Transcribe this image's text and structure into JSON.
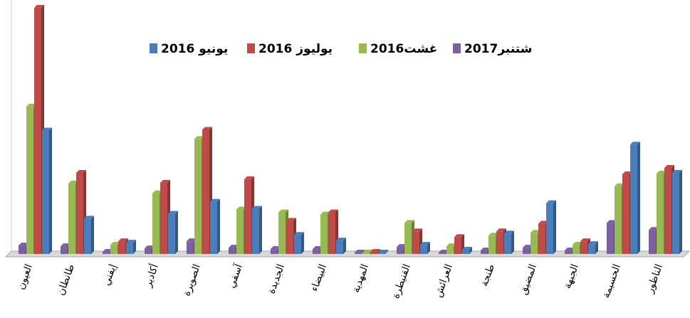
{
  "chart_data": {
    "type": "bar",
    "categories": [
      "العيون",
      "طانطان",
      "إيفني",
      "أكادير",
      "الصويرة",
      "آسفي",
      "الجديدة",
      "البيضاء",
      "المهدية",
      "القنيطرة",
      "العرائش",
      "طنجة",
      "المضيق",
      "الجبهة",
      "الحسيمة",
      "الناظور"
    ],
    "series": [
      {
        "name": "يونيو 2016",
        "color": "#4a7ebb",
        "values": [
          175,
          50,
          16,
          57,
          74,
          64,
          27,
          19,
          2,
          13,
          6,
          29,
          72,
          14,
          155,
          115
        ]
      },
      {
        "name": "يوليوز 2016",
        "color": "#be4b48",
        "values": [
          349,
          115,
          18,
          101,
          176,
          106,
          47,
          59,
          3,
          32,
          24,
          32,
          43,
          18,
          113,
          122
        ]
      },
      {
        "name": "غشت2016",
        "color": "#98b954",
        "values": [
          209,
          100,
          13,
          86,
          163,
          63,
          59,
          56,
          2,
          44,
          11,
          26,
          30,
          13,
          96,
          114
        ]
      },
      {
        "name": "شتنبر2017",
        "color": "#7d60a0",
        "values": [
          12,
          11,
          3,
          8,
          18,
          9,
          7,
          7,
          2,
          10,
          2,
          5,
          9,
          5,
          44,
          34
        ]
      }
    ],
    "ylim": [
      0,
      360
    ],
    "legend": "top"
  }
}
